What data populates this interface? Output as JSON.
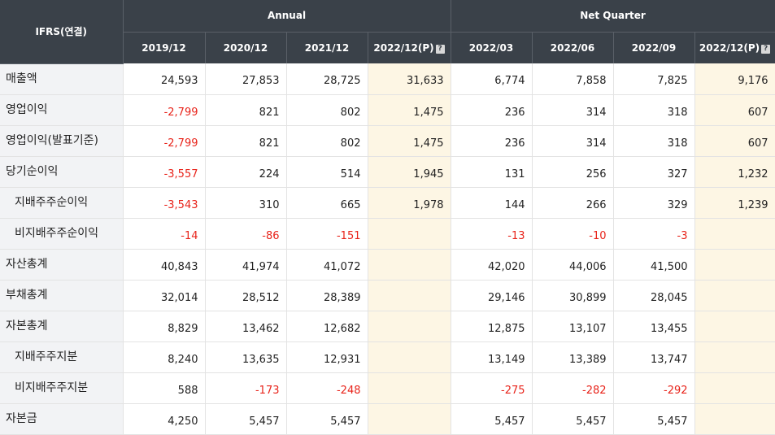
{
  "header": {
    "corner": "IFRS(연결)",
    "annual_label": "Annual",
    "quarter_label": "Net Quarter",
    "periods": [
      "2019/12",
      "2020/12",
      "2021/12",
      "2022/12(P)",
      "2022/03",
      "2022/06",
      "2022/09",
      "2022/12(P)"
    ],
    "estimate_icon": "?"
  },
  "rows": [
    {
      "label": "매출액",
      "values": [
        "24,593",
        "27,853",
        "28,725",
        "31,633",
        "6,774",
        "7,858",
        "7,825",
        "9,176"
      ]
    },
    {
      "label": "영업이익",
      "values": [
        "-2,799",
        "821",
        "802",
        "1,475",
        "236",
        "314",
        "318",
        "607"
      ]
    },
    {
      "label": "영업이익(발표기준)",
      "values": [
        "-2,799",
        "821",
        "802",
        "1,475",
        "236",
        "314",
        "318",
        "607"
      ]
    },
    {
      "label": "당기순이익",
      "values": [
        "-3,557",
        "224",
        "514",
        "1,945",
        "131",
        "256",
        "327",
        "1,232"
      ]
    },
    {
      "label": "지배주주순이익",
      "values": [
        "-3,543",
        "310",
        "665",
        "1,978",
        "144",
        "266",
        "329",
        "1,239"
      ]
    },
    {
      "label": "비지배주주순이익",
      "values": [
        "-14",
        "-86",
        "-151",
        "",
        "-13",
        "-10",
        "-3",
        ""
      ]
    },
    {
      "label": "자산총계",
      "values": [
        "40,843",
        "41,974",
        "41,072",
        "",
        "42,020",
        "44,006",
        "41,500",
        ""
      ]
    },
    {
      "label": "부채총계",
      "values": [
        "32,014",
        "28,512",
        "28,389",
        "",
        "29,146",
        "30,899",
        "28,045",
        ""
      ]
    },
    {
      "label": "자본총계",
      "values": [
        "8,829",
        "13,462",
        "12,682",
        "",
        "12,875",
        "13,107",
        "13,455",
        ""
      ]
    },
    {
      "label": "지배주주지분",
      "values": [
        "8,240",
        "13,635",
        "12,931",
        "",
        "13,149",
        "13,389",
        "13,747",
        ""
      ]
    },
    {
      "label": "비지배주주지분",
      "values": [
        "588",
        "-173",
        "-248",
        "",
        "-275",
        "-282",
        "-292",
        ""
      ]
    },
    {
      "label": "자본금",
      "values": [
        "4,250",
        "5,457",
        "5,457",
        "",
        "5,457",
        "5,457",
        "5,457",
        ""
      ]
    }
  ],
  "colors": {
    "header_bg": "#3a4149",
    "label_bg": "#f2f3f5",
    "estimate_bg": "#fdf6e4",
    "negative": "#e8231a"
  }
}
